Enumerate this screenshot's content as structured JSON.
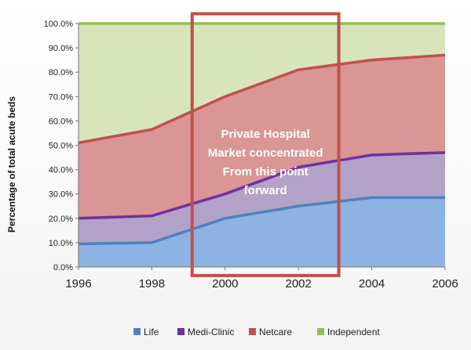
{
  "chart_data": {
    "type": "area",
    "stacked": true,
    "x": [
      1996,
      1998,
      2000,
      2002,
      2004,
      2006
    ],
    "xlim": [
      1996,
      2006
    ],
    "ylim": [
      0,
      100
    ],
    "y_tick_values": [
      0,
      10,
      20,
      30,
      40,
      50,
      60,
      70,
      80,
      90,
      100
    ],
    "y_tick_labels": [
      "0.0%",
      "10.0%",
      "20.0%",
      "30.0%",
      "40.0%",
      "50.0%",
      "60.0%",
      "70.0%",
      "80.0%",
      "90.0%",
      "100.0%"
    ],
    "x_tick_labels": [
      "1996",
      "1998",
      "2000",
      "2002",
      "2004",
      "2006"
    ],
    "ylabel": "Percentage of total acute beds",
    "xlabel": "",
    "title": "",
    "legend_position": "bottom",
    "series": [
      {
        "name": "Life",
        "color": "#8db3e2",
        "line_color": "#4f81bd",
        "values": [
          9.5,
          10,
          20,
          25,
          28.5,
          28.5
        ]
      },
      {
        "name": "Medi-Clinic",
        "color": "#b3a2c7",
        "line_color": "#7030a0",
        "values": [
          10.5,
          11,
          10,
          16,
          17.5,
          18.5
        ]
      },
      {
        "name": "Netcare",
        "color": "#d99694",
        "line_color": "#c0504d",
        "values": [
          31,
          35.5,
          40,
          40,
          39,
          40
        ]
      },
      {
        "name": "Independent",
        "color": "#d7e4bc",
        "line_color": "#9bbb59",
        "values": [
          49,
          43.5,
          30,
          19,
          15,
          13
        ]
      }
    ],
    "annotation": {
      "lines": [
        "Private Hospital",
        "Market concentrated",
        "From this point",
        "forward"
      ],
      "box_x_range": [
        1999.1,
        2003.1
      ],
      "box_y_range": [
        -3.5,
        104
      ],
      "box_color": "#c0504d"
    }
  }
}
